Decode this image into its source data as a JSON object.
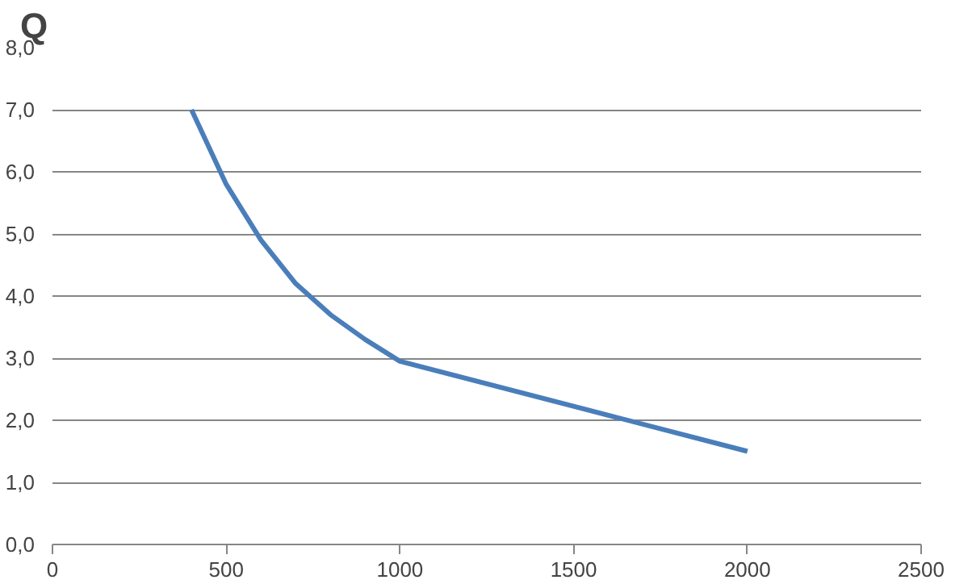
{
  "chart_data": {
    "type": "line",
    "title": "Q",
    "x": [
      400,
      500,
      600,
      700,
      800,
      900,
      1000,
      2000
    ],
    "series": [
      {
        "color": "#4a7ebb",
        "values": [
          7.0,
          5.8,
          4.9,
          4.2,
          3.7,
          3.3,
          2.95,
          1.5
        ]
      }
    ],
    "xlim": [
      0,
      2500
    ],
    "xticks": [
      0,
      500,
      1000,
      1500,
      2000,
      2500
    ],
    "ylim": [
      0,
      8
    ],
    "yticks": [
      {
        "value": 0,
        "label": "0,0"
      },
      {
        "value": 1,
        "label": "1,0"
      },
      {
        "value": 2,
        "label": "2,0"
      },
      {
        "value": 3,
        "label": "3,0"
      },
      {
        "value": 4,
        "label": "4,0"
      },
      {
        "value": 5,
        "label": "5,0"
      },
      {
        "value": 6,
        "label": "6,0"
      },
      {
        "value": 7,
        "label": "7,0"
      },
      {
        "value": 8,
        "label": "8,0"
      }
    ],
    "grid": "y",
    "marker": "none",
    "line_style": "solid"
  }
}
